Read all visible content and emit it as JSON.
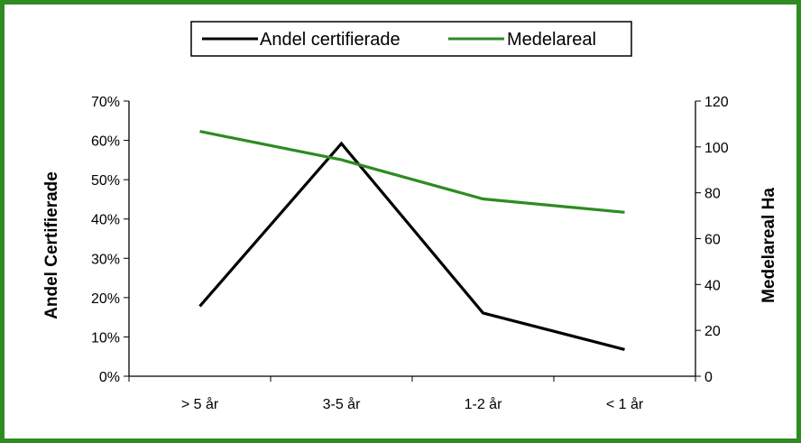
{
  "colors": {
    "border": "#2e8b22",
    "series_black": "#000000",
    "series_green": "#2e8b22"
  },
  "chart_data": {
    "type": "line",
    "title": "",
    "categories": [
      "> 5 år",
      "3-5 år",
      "1-2 år",
      "< 1 år"
    ],
    "xlabel": "",
    "ylabel_left": "Andel Certifierade",
    "ylabel_right": "Medelareal Ha",
    "ylim_left": [
      0,
      70
    ],
    "ylim_right": [
      0,
      120
    ],
    "left_ticks": [
      "0%",
      "10%",
      "20%",
      "30%",
      "40%",
      "50%",
      "60%",
      "70%"
    ],
    "right_ticks": [
      "0",
      "20",
      "40",
      "60",
      "80",
      "100",
      "120"
    ],
    "grid": false,
    "legend_position": "top",
    "series": [
      {
        "name": "Andel certifierade",
        "axis": "left",
        "unit": "%",
        "color": "#000000",
        "values": [
          17.8,
          59.2,
          16.1,
          6.8
        ]
      },
      {
        "name": "Medelareal",
        "axis": "right",
        "unit": "Ha",
        "color": "#2e8b22",
        "values": [
          106.8,
          94.4,
          77.3,
          71.5
        ]
      }
    ]
  }
}
